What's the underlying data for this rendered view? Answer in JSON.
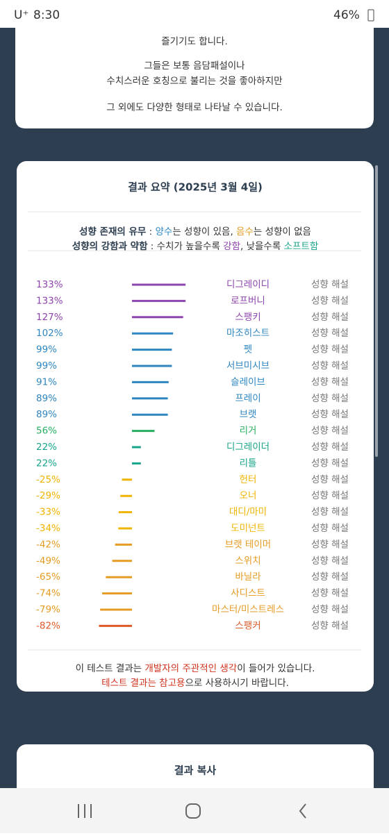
{
  "status_bar": {
    "carrier": "U⁺",
    "time": "8:30",
    "battery": "46%"
  },
  "intro_card": {
    "lines": [
      "즐기기도 합니다.",
      "그들은 보통 음담패설이나",
      "수치스러운 호칭으로 불리는 것을 좋아하지만",
      "그 외에도 다양한 형태로 나타날 수 있습니다."
    ]
  },
  "summary_card": {
    "title": "결과 요약 (2025년 3월 4일)",
    "legend": [
      {
        "segments": [
          {
            "text": "성향 존재의 유무",
            "color": "#2c3e50",
            "bold": true
          },
          {
            "text": " : ",
            "color": "#333333"
          },
          {
            "text": "양수",
            "color": "#2e86c1"
          },
          {
            "text": "는 성향이 있음, ",
            "color": "#333333"
          },
          {
            "text": "음수",
            "color": "#e69b23"
          },
          {
            "text": "는 성향이 없음",
            "color": "#333333"
          }
        ]
      },
      {
        "segments": [
          {
            "text": "성향의 강함과 약함",
            "color": "#2c3e50",
            "bold": true
          },
          {
            "text": " : 수치가 높을수록 ",
            "color": "#333333"
          },
          {
            "text": "강함",
            "color": "#8e44ad"
          },
          {
            "text": ", 낮을수록 ",
            "color": "#333333"
          },
          {
            "text": "소프트함",
            "color": "#17a589"
          }
        ]
      }
    ],
    "results": {
      "values": [
        133,
        133,
        127,
        102,
        99,
        99,
        91,
        89,
        89,
        56,
        22,
        22,
        -25,
        -29,
        -33,
        -34,
        -42,
        -49,
        -65,
        -74,
        -79,
        -82
      ],
      "value_labels": [
        "133%",
        "133%",
        "127%",
        "102%",
        "99%",
        "99%",
        "91%",
        "89%",
        "89%",
        "56%",
        "22%",
        "22%",
        "-25%",
        "-29%",
        "-33%",
        "-34%",
        "-42%",
        "-49%",
        "-65%",
        "-74%",
        "-79%",
        "-82%"
      ],
      "names": [
        "디그레이디",
        "로프버니",
        "스팽키",
        "마조히스트",
        "펫",
        "서브미시브",
        "슬레이브",
        "프레이",
        "브랫",
        "리거",
        "디그레이더",
        "리틀",
        "헌터",
        "오너",
        "대디/마미",
        "도미넌트",
        "브랫 테이머",
        "스위치",
        "바닐라",
        "사디스트",
        "마스터/미스트레스",
        "스팽커"
      ],
      "links": [
        "성향 해설",
        "성향 해설",
        "성향 해설",
        "성향 해설",
        "성향 해설",
        "성향 해설",
        "성향 해설",
        "성향 해설",
        "성향 해설",
        "성향 해설",
        "성향 해설",
        "성향 해설",
        "성향 해설",
        "성향 해설",
        "성향 해설",
        "성향 해설",
        "성향 해설",
        "성향 해설",
        "성향 해설",
        "성향 해설",
        "성향 해설",
        "성향 해설"
      ],
      "colors": [
        "#8e44ad",
        "#8e44ad",
        "#8e44ad",
        "#2e86c1",
        "#2e86c1",
        "#2e86c1",
        "#2e86c1",
        "#2e86c1",
        "#2e86c1",
        "#27ae60",
        "#17a589",
        "#17a589",
        "#f0b400",
        "#f0b400",
        "#f0b400",
        "#f0b400",
        "#e69b23",
        "#e69b23",
        "#e69b23",
        "#e69b23",
        "#e69b23",
        "#dc5a28"
      ]
    },
    "footer": [
      {
        "segments": [
          {
            "text": "이 테스트 결과는 ",
            "color": "#333333"
          },
          {
            "text": "개발자의 주관적인 생각",
            "color": "#d0331f"
          },
          {
            "text": "이 들어가 있습니다.",
            "color": "#333333"
          }
        ]
      },
      {
        "segments": [
          {
            "text": "테스트 결과는 참고용",
            "color": "#d0331f"
          },
          {
            "text": "으로 사용하시기 바랍니다.",
            "color": "#333333"
          }
        ]
      }
    ]
  },
  "copy_card": {
    "title": "결과 복사"
  }
}
